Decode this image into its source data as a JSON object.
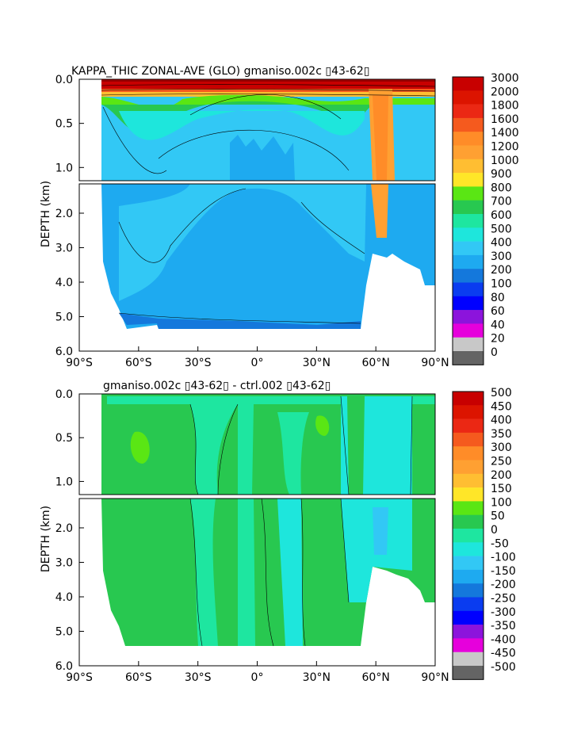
{
  "chart_data": [
    {
      "type": "heatmap",
      "title": "KAPPA_THIC ZONAL-AVE (GLO) gmaniso.002c ▯43-62▯",
      "ylabel": "DEPTH (km)",
      "xlabel": "",
      "x_ticks": [
        "90°S",
        "60°S",
        "30°S",
        "0°",
        "30°N",
        "60°N",
        "90°N"
      ],
      "y_ticks_upper": [
        "0.0",
        "0.5",
        "1.0"
      ],
      "y_ticks_lower": [
        "2.0",
        "3.0",
        "4.0",
        "5.0",
        "6.0"
      ],
      "xlim": [
        -90,
        90
      ],
      "ylim": [
        6.0,
        0.0
      ],
      "colorbar_levels": [
        "3000",
        "2000",
        "1800",
        "1600",
        "1400",
        "1200",
        "1000",
        "900",
        "800",
        "700",
        "600",
        "500",
        "400",
        "300",
        "200",
        "100",
        "80",
        "60",
        "40",
        "20",
        "0"
      ],
      "colorbar_colors": [
        "#c80000",
        "#dc1400",
        "#eb2814",
        "#f55a1e",
        "#ff8c28",
        "#ffa032",
        "#ffbe32",
        "#ffe628",
        "#5ae614",
        "#28c850",
        "#1ee6a0",
        "#1ee6dc",
        "#32c8f5",
        "#1eaaf0",
        "#1478dc",
        "#0a3cf0",
        "#0000ff",
        "#8c14dc",
        "#e600dc",
        "#c8c8c8",
        "#646464"
      ]
    },
    {
      "type": "heatmap",
      "title": "gmaniso.002c ▯43-62▯ - ctrl.002 ▯43-62▯",
      "ylabel": "DEPTH (km)",
      "xlabel": "",
      "x_ticks": [
        "90°S",
        "60°S",
        "30°S",
        "0°",
        "30°N",
        "60°N",
        "90°N"
      ],
      "y_ticks_upper": [
        "0.0",
        "0.5",
        "1.0"
      ],
      "y_ticks_lower": [
        "2.0",
        "3.0",
        "4.0",
        "5.0",
        "6.0"
      ],
      "xlim": [
        -90,
        90
      ],
      "ylim": [
        6.0,
        0.0
      ],
      "colorbar_levels": [
        "500",
        "450",
        "400",
        "350",
        "300",
        "250",
        "200",
        "150",
        "100",
        "50",
        "0",
        "-50",
        "-100",
        "-150",
        "-200",
        "-250",
        "-300",
        "-350",
        "-400",
        "-450",
        "-500"
      ],
      "colorbar_colors": [
        "#c80000",
        "#dc1400",
        "#eb2814",
        "#f55a1e",
        "#ff8c28",
        "#ffa032",
        "#ffbe32",
        "#ffe628",
        "#5ae614",
        "#28c850",
        "#1ee6a0",
        "#1ee6dc",
        "#32c8f5",
        "#1eaaf0",
        "#1478dc",
        "#0a3cf0",
        "#0000ff",
        "#8c14dc",
        "#e600dc",
        "#c8c8c8",
        "#646464"
      ]
    }
  ]
}
